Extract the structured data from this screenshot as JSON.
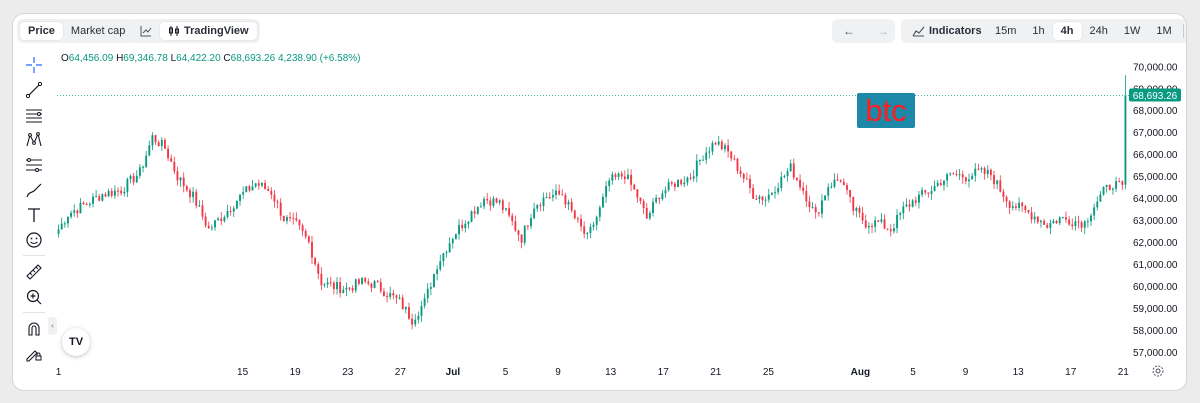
{
  "toolbar": {
    "price_tab": "Price",
    "marketcap_tab": "Market cap",
    "tradingview_label": "TradingView",
    "indicators_label": "Indicators",
    "intervals": [
      "15m",
      "1h",
      "4h",
      "24h",
      "1W",
      "1M"
    ],
    "active_interval": "4h"
  },
  "ohlc": {
    "o_label": "O",
    "o": "64,456.09",
    "h_label": "H",
    "h": "69,346.78",
    "l_label": "L",
    "l": "64,422.20",
    "c_label": "C",
    "c": "68,693.26",
    "change": "4,238.90 (+6.58%)"
  },
  "watermark_text": "btc",
  "logo_text": "TV",
  "colors": {
    "up": "#089981",
    "down": "#f23645",
    "accent": "#089981"
  },
  "icons": [
    "crosshair-icon",
    "trendline-icon",
    "channel-icon",
    "pattern-icon",
    "fib-icon",
    "brush-icon",
    "text-icon",
    "emoji-icon",
    "ruler-icon",
    "zoom-icon",
    "magnet-icon",
    "lock-draw-icon",
    "undo-icon",
    "redo-icon",
    "settings-gear-icon"
  ],
  "chart_data": {
    "type": "candlestick",
    "ylim": [
      56700,
      70400
    ],
    "y_ticks": [
      "70,000.00",
      "69,000.00",
      "68,000.00",
      "67,000.00",
      "66,000.00",
      "65,000.00",
      "64,000.00",
      "63,000.00",
      "62,000.00",
      "61,000.00",
      "60,000.00",
      "59,000.00",
      "58,000.00",
      "57,000.00"
    ],
    "x_ticks": [
      "1",
      "15",
      "19",
      "23",
      "27",
      "Jul",
      "5",
      "9",
      "13",
      "17",
      "21",
      "25",
      "Aug",
      "5",
      "9",
      "13",
      "17",
      "21"
    ],
    "last_price_label": "68,693.26",
    "last_price": 68693.26,
    "price_anchors": [
      {
        "t": 0,
        "p": 62600
      },
      {
        "t": 3,
        "p": 63300
      },
      {
        "t": 8,
        "p": 63700
      },
      {
        "t": 14,
        "p": 64200
      },
      {
        "t": 20,
        "p": 64400
      },
      {
        "t": 26,
        "p": 65200
      },
      {
        "t": 30,
        "p": 66800
      },
      {
        "t": 34,
        "p": 66300
      },
      {
        "t": 38,
        "p": 65000
      },
      {
        "t": 43,
        "p": 64100
      },
      {
        "t": 48,
        "p": 62600
      },
      {
        "t": 53,
        "p": 63300
      },
      {
        "t": 58,
        "p": 64100
      },
      {
        "t": 63,
        "p": 64700
      },
      {
        "t": 68,
        "p": 64300
      },
      {
        "t": 72,
        "p": 63100
      },
      {
        "t": 76,
        "p": 62800
      },
      {
        "t": 80,
        "p": 62000
      },
      {
        "t": 84,
        "p": 60200
      },
      {
        "t": 88,
        "p": 60000
      },
      {
        "t": 92,
        "p": 59900
      },
      {
        "t": 97,
        "p": 60200
      },
      {
        "t": 101,
        "p": 60100
      },
      {
        "t": 105,
        "p": 59700
      },
      {
        "t": 109,
        "p": 59300
      },
      {
        "t": 113,
        "p": 58500
      },
      {
        "t": 117,
        "p": 59300
      },
      {
        "t": 121,
        "p": 61000
      },
      {
        "t": 126,
        "p": 62300
      },
      {
        "t": 131,
        "p": 63200
      },
      {
        "t": 136,
        "p": 64000
      },
      {
        "t": 141,
        "p": 63800
      },
      {
        "t": 145,
        "p": 62900
      },
      {
        "t": 148,
        "p": 62200
      },
      {
        "t": 152,
        "p": 63700
      },
      {
        "t": 156,
        "p": 64100
      },
      {
        "t": 161,
        "p": 64200
      },
      {
        "t": 165,
        "p": 63100
      },
      {
        "t": 169,
        "p": 62200
      },
      {
        "t": 173,
        "p": 63500
      },
      {
        "t": 176,
        "p": 64800
      },
      {
        "t": 181,
        "p": 65100
      },
      {
        "t": 185,
        "p": 64100
      },
      {
        "t": 188,
        "p": 63100
      },
      {
        "t": 192,
        "p": 64200
      },
      {
        "t": 197,
        "p": 64700
      },
      {
        "t": 202,
        "p": 65000
      },
      {
        "t": 206,
        "p": 66000
      },
      {
        "t": 210,
        "p": 66600
      },
      {
        "t": 214,
        "p": 66100
      },
      {
        "t": 218,
        "p": 65200
      },
      {
        "t": 222,
        "p": 64200
      },
      {
        "t": 226,
        "p": 64000
      },
      {
        "t": 230,
        "p": 64700
      },
      {
        "t": 234,
        "p": 65400
      },
      {
        "t": 238,
        "p": 64400
      },
      {
        "t": 242,
        "p": 63200
      },
      {
        "t": 246,
        "p": 64600
      },
      {
        "t": 250,
        "p": 64900
      },
      {
        "t": 254,
        "p": 63500
      },
      {
        "t": 258,
        "p": 62900
      },
      {
        "t": 262,
        "p": 62900
      },
      {
        "t": 266,
        "p": 62600
      },
      {
        "t": 270,
        "p": 63500
      },
      {
        "t": 274,
        "p": 64000
      },
      {
        "t": 278,
        "p": 64300
      },
      {
        "t": 282,
        "p": 64800
      },
      {
        "t": 286,
        "p": 65100
      },
      {
        "t": 290,
        "p": 65000
      },
      {
        "t": 294,
        "p": 65200
      },
      {
        "t": 298,
        "p": 65100
      },
      {
        "t": 301,
        "p": 64400
      },
      {
        "t": 304,
        "p": 63800
      },
      {
        "t": 308,
        "p": 63500
      },
      {
        "t": 312,
        "p": 63200
      },
      {
        "t": 316,
        "p": 62800
      },
      {
        "t": 320,
        "p": 63100
      },
      {
        "t": 324,
        "p": 63000
      },
      {
        "t": 328,
        "p": 62900
      },
      {
        "t": 331,
        "p": 63700
      },
      {
        "t": 334,
        "p": 64300
      },
      {
        "t": 337,
        "p": 64700
      },
      {
        "t": 340,
        "p": 64456
      },
      {
        "t": 341,
        "p": 68693
      }
    ],
    "candle_count": 342,
    "seed": 7
  }
}
